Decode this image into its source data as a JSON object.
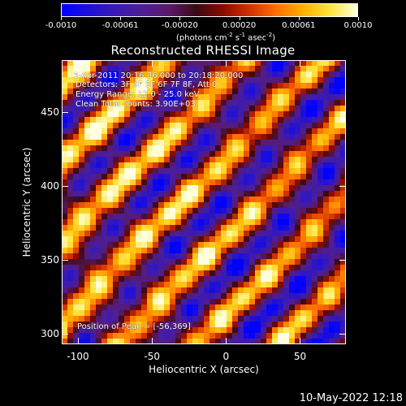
{
  "colorbar": {
    "tick_labels": [
      "-0.0010",
      "-0.00061",
      "-0.00020",
      "0.00020",
      "0.00061",
      "0.0010"
    ],
    "units": [
      "(photons cm",
      "-2",
      " s",
      "-1",
      " asec",
      "-2",
      ")"
    ],
    "colormap": [
      "#0000ff",
      "#1e10d8",
      "#3a1ab4",
      "#4e1e94",
      "#5a1a6a",
      "#3a0a14",
      "#8a0a00",
      "#d23200",
      "#ff7000",
      "#ffb000",
      "#ffe640",
      "#ffffe0"
    ],
    "range": [
      -0.001,
      0.001
    ]
  },
  "title": "Reconstructed RHESSI Image",
  "annotations": {
    "time_range": "3-Apr-2011 20:16:36.000 to 20:18:20.000",
    "detectors": "Detectors: 3F 4F 5F 6F 7F 8F, Att 0",
    "energy_range": "Energy Range: 12.0 - 25.0 keV",
    "clean_counts": "Clean     Total counts: 3.90E+03",
    "peak_position": "Position of Peak = [-56,369]"
  },
  "axes": {
    "x_title": "Heliocentric X (arcsec)",
    "y_title": "Heliocentric Y (arcsec)",
    "x_ticks": [
      "-100",
      "-50",
      "0",
      "50"
    ],
    "y_ticks": [
      "300",
      "350",
      "400",
      "450"
    ],
    "x_range": [
      -111,
      81
    ],
    "y_range": [
      293,
      485
    ]
  },
  "timestamp": "10-May-2022 12:18"
}
